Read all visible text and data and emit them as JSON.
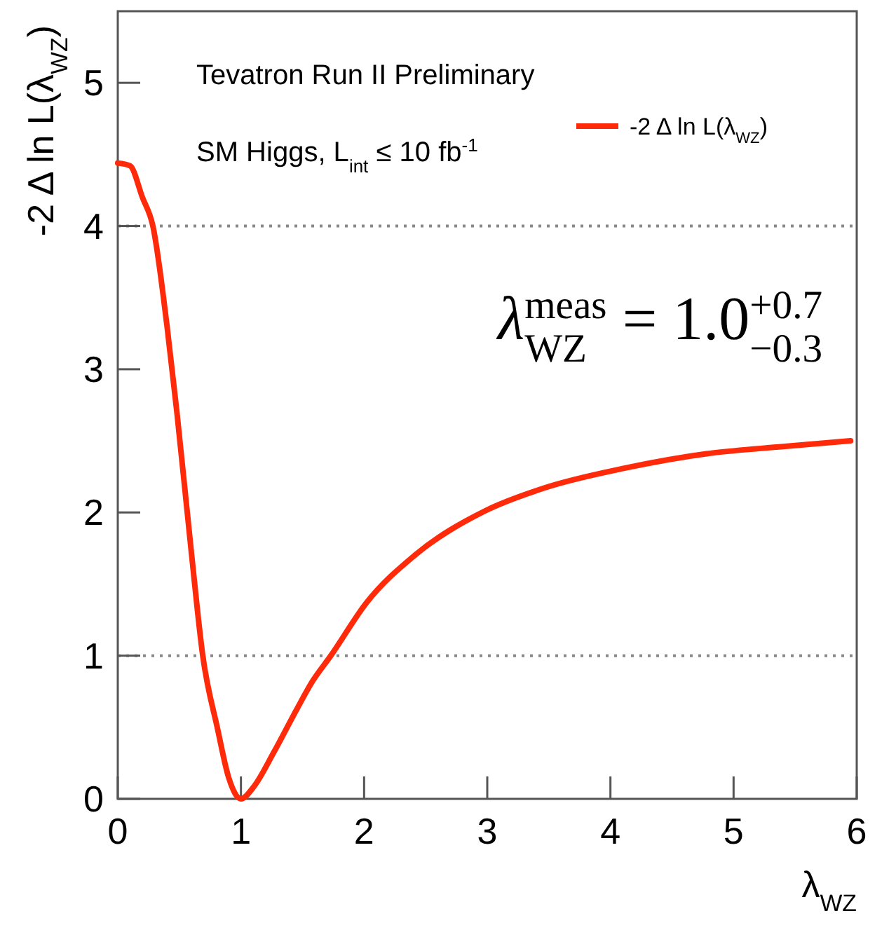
{
  "chart_data": {
    "type": "line",
    "xlabel": "λ$_{WZ}$",
    "ylabel": "-2 Δ ln L(λ$_{WZ}$)",
    "annotations": [
      "Tevatron Run II Preliminary",
      "SM Higgs, L$_{int}$ ≤ 10 fb$^{-1}$",
      "λ$_{WZ}$$^{meas}$ = 1.0$^{+0.7}$$_{−0.3}$"
    ],
    "series": [
      {
        "name": "-2 Δ ln L(λ$_{WZ}$)",
        "color": "#ff2a0a",
        "x": [
          0,
          0.1,
          0.2,
          0.285,
          0.4,
          0.48,
          0.6,
          0.69,
          0.81,
          0.9,
          1.0,
          1.1,
          1.27,
          1.45,
          1.58,
          1.73,
          2.02,
          2.41,
          2.98,
          3.46,
          4.12,
          4.78,
          5.4,
          5.95
        ],
        "values": [
          4.44,
          4.42,
          4.2,
          4.0,
          3.3,
          2.7,
          1.7,
          1.0,
          0.49,
          0.15,
          0.0,
          0.08,
          0.33,
          0.62,
          0.82,
          1.0,
          1.37,
          1.7,
          2.01,
          2.17,
          2.31,
          2.41,
          2.46,
          2.5
        ]
      }
    ],
    "xlim": [
      0,
      6
    ],
    "xticks": [
      0,
      1,
      2,
      3,
      4,
      5,
      6
    ],
    "ylim": [
      0,
      5.5
    ],
    "yticks": [
      0,
      1,
      2,
      3,
      4,
      5
    ],
    "ref_lines": [
      {
        "axis": "y",
        "value": 1,
        "color": "#888888",
        "line_style": "dotted"
      },
      {
        "axis": "y",
        "value": 4,
        "color": "#888888",
        "line_style": "dotted"
      }
    ],
    "legend": "top right",
    "grid": false,
    "marker": "none",
    "line_style": "solid"
  }
}
